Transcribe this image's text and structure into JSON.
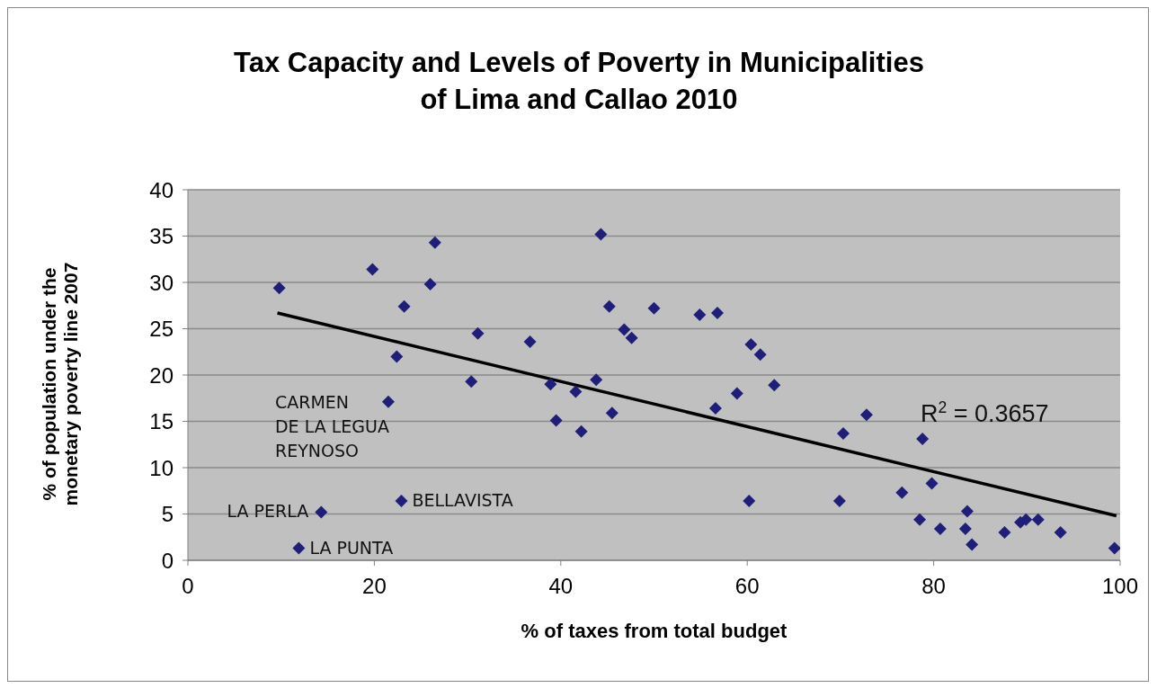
{
  "chart_data": {
    "type": "scatter",
    "title": "Tax Capacity and Levels of Poverty in Municipalities of Lima and Callao 2010",
    "xlabel": "% of taxes from total budget",
    "ylabel": "% of population under the monetary poverty line 2007",
    "xlim": [
      0,
      100
    ],
    "xticks": [
      0,
      20,
      40,
      60,
      80,
      100
    ],
    "ylim": [
      0,
      40
    ],
    "yticks": [
      0,
      5,
      10,
      15,
      20,
      25,
      30,
      35,
      40
    ],
    "grid": "y",
    "legend": false,
    "marker": "diamond",
    "series": [
      {
        "type": "scatter",
        "color": "#1f1f7a",
        "x": [
          9.8,
          19.8,
          26.5,
          26.0,
          23.2,
          22.4,
          21.5,
          14.3,
          22.9,
          11.9,
          31.1,
          30.4,
          36.7,
          38.9,
          39.5,
          41.6,
          42.2,
          43.8,
          44.3,
          45.2,
          45.5,
          46.8,
          47.6,
          50.0,
          54.9,
          56.8,
          60.4,
          61.4,
          62.9,
          58.9,
          56.6,
          60.2,
          69.9,
          70.3,
          72.8,
          78.8,
          76.6,
          79.8,
          78.5,
          80.7,
          83.6,
          83.4,
          84.1,
          87.6,
          89.3,
          89.9,
          91.2,
          93.6,
          99.4
        ],
        "values": [
          29.4,
          31.4,
          34.3,
          29.8,
          27.4,
          22.0,
          17.1,
          5.2,
          6.4,
          1.3,
          24.5,
          19.3,
          23.6,
          19.0,
          15.1,
          18.2,
          13.9,
          19.5,
          35.2,
          27.4,
          15.9,
          24.9,
          24.0,
          27.2,
          26.5,
          26.7,
          23.3,
          22.2,
          18.9,
          18.0,
          16.4,
          6.4,
          6.4,
          13.7,
          15.7,
          13.1,
          7.3,
          8.3,
          4.4,
          3.4,
          5.3,
          3.4,
          1.7,
          3.0,
          4.1,
          4.4,
          4.4,
          3.0,
          1.3
        ]
      },
      {
        "type": "line",
        "color": "#000000",
        "x": [
          9.6,
          99.6
        ],
        "values": [
          26.7,
          4.8
        ],
        "marker": "none"
      }
    ],
    "annotations": [
      {
        "text": "CARMEN DE LA LEGUA REYNOSO",
        "x": 21.5,
        "y": 17.1
      },
      {
        "text": "LA PERLA",
        "x": 14.3,
        "y": 5.2
      },
      {
        "text": "BELLAVISTA",
        "x": 22.9,
        "y": 6.4
      },
      {
        "text": "LA PUNTA",
        "x": 11.9,
        "y": 1.3
      },
      "R$^{2}$ = 0.3657"
    ]
  }
}
